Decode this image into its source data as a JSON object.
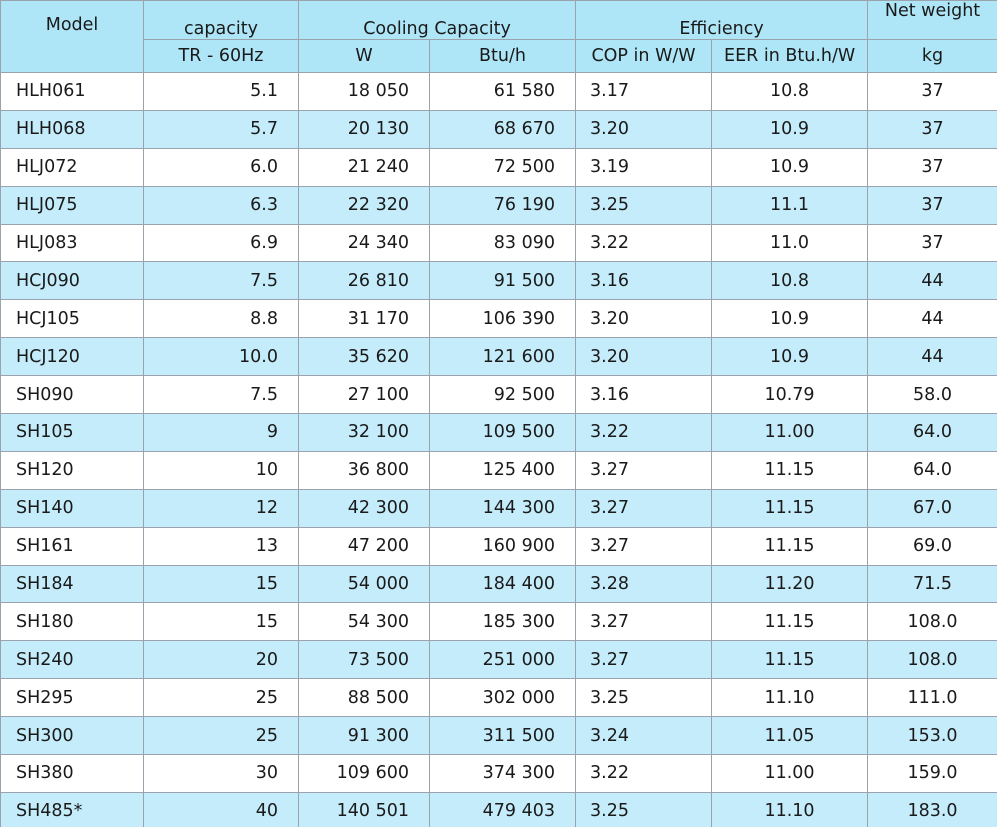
{
  "header": {
    "model": "Model",
    "capacity": "capacity",
    "capacity_unit": "TR - 60Hz",
    "cooling": "Cooling Capacity",
    "cooling_w": "W",
    "cooling_btu": "Btu/h",
    "efficiency": "Efficiency",
    "cop": "COP in W/W",
    "eer": "EER in Btu.h/W",
    "weight": "Net weight",
    "weight_unit": "kg"
  },
  "rows": [
    {
      "model": "HLH061",
      "tr": "5.1",
      "w": "18 050",
      "btu": "61 580",
      "cop": "3.17",
      "eer": "10.8",
      "kg": "37"
    },
    {
      "model": "HLH068",
      "tr": "5.7",
      "w": "20 130",
      "btu": "68 670",
      "cop": "3.20",
      "eer": "10.9",
      "kg": "37"
    },
    {
      "model": "HLJ072",
      "tr": "6.0",
      "w": "21 240",
      "btu": "72 500",
      "cop": "3.19",
      "eer": "10.9",
      "kg": "37"
    },
    {
      "model": "HLJ075",
      "tr": "6.3",
      "w": "22 320",
      "btu": "76 190",
      "cop": "3.25",
      "eer": "11.1",
      "kg": "37"
    },
    {
      "model": "HLJ083",
      "tr": "6.9",
      "w": "24 340",
      "btu": "83 090",
      "cop": "3.22",
      "eer": "11.0",
      "kg": "37"
    },
    {
      "model": "HCJ090",
      "tr": "7.5",
      "w": "26 810",
      "btu": "91 500",
      "cop": "3.16",
      "eer": "10.8",
      "kg": "44"
    },
    {
      "model": "HCJ105",
      "tr": "8.8",
      "w": "31 170",
      "btu": "106 390",
      "cop": "3.20",
      "eer": "10.9",
      "kg": "44"
    },
    {
      "model": "HCJ120",
      "tr": "10.0",
      "w": "35 620",
      "btu": "121 600",
      "cop": "3.20",
      "eer": "10.9",
      "kg": "44"
    },
    {
      "model": "SH090",
      "tr": "7.5",
      "w": "27 100",
      "btu": "92 500",
      "cop": "3.16",
      "eer": "10.79",
      "kg": "58.0"
    },
    {
      "model": "SH105",
      "tr": "9",
      "w": "32 100",
      "btu": "109 500",
      "cop": "3.22",
      "eer": "11.00",
      "kg": "64.0"
    },
    {
      "model": "SH120",
      "tr": "10",
      "w": "36 800",
      "btu": "125 400",
      "cop": "3.27",
      "eer": "11.15",
      "kg": "64.0"
    },
    {
      "model": "SH140",
      "tr": "12",
      "w": "42 300",
      "btu": "144 300",
      "cop": "3.27",
      "eer": "11.15",
      "kg": "67.0"
    },
    {
      "model": "SH161",
      "tr": "13",
      "w": "47 200",
      "btu": "160 900",
      "cop": "3.27",
      "eer": "11.15",
      "kg": "69.0"
    },
    {
      "model": "SH184",
      "tr": "15",
      "w": "54 000",
      "btu": "184 400",
      "cop": "3.28",
      "eer": "11.20",
      "kg": "71.5"
    },
    {
      "model": "SH180",
      "tr": "15",
      "w": "54 300",
      "btu": "185 300",
      "cop": "3.27",
      "eer": "11.15",
      "kg": "108.0"
    },
    {
      "model": "SH240",
      "tr": "20",
      "w": "73 500",
      "btu": "251 000",
      "cop": "3.27",
      "eer": "11.15",
      "kg": "108.0"
    },
    {
      "model": "SH295",
      "tr": "25",
      "w": "88 500",
      "btu": "302 000",
      "cop": "3.25",
      "eer": "11.10",
      "kg": "111.0"
    },
    {
      "model": "SH300",
      "tr": "25",
      "w": "91 300",
      "btu": "311 500",
      "cop": "3.24",
      "eer": "11.05",
      "kg": "153.0"
    },
    {
      "model": "SH380",
      "tr": "30",
      "w": "109 600",
      "btu": "374 300",
      "cop": "3.22",
      "eer": "11.00",
      "kg": "159.0"
    },
    {
      "model": "SH485*",
      "tr": "40",
      "w": "140 501",
      "btu": "479 403",
      "cop": "3.25",
      "eer": "11.10",
      "kg": "183.0"
    }
  ],
  "colors": {
    "header_bg": "#aee6f7",
    "alt_row_bg": "#c5ecfa",
    "border": "#9aa3ab"
  }
}
